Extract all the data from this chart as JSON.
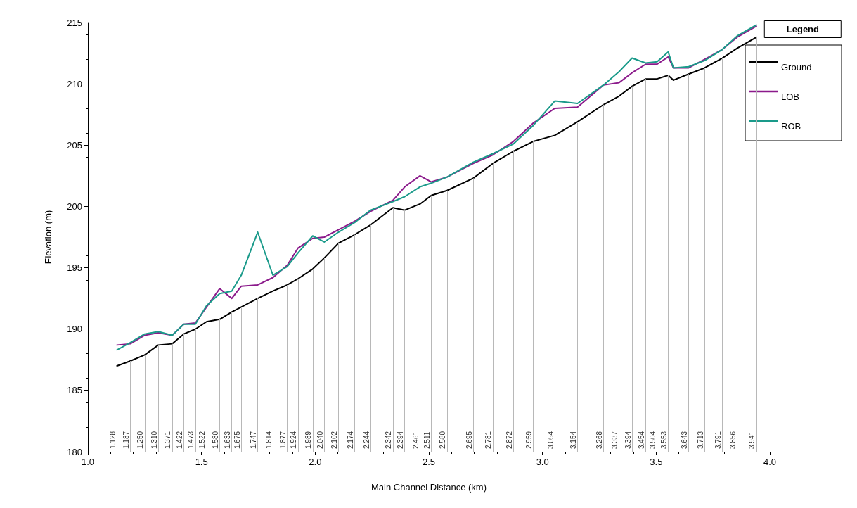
{
  "chart_data": {
    "type": "line",
    "xlabel": "Main Channel Distance (km)",
    "ylabel": "Elevation (m)",
    "legend_title": "Legend",
    "legend": "top right",
    "grid": false,
    "line_style": "solid",
    "marker": "none",
    "x": [
      1.128,
      1.187,
      1.25,
      1.31,
      1.371,
      1.422,
      1.473,
      1.522,
      1.58,
      1.633,
      1.675,
      1.747,
      1.814,
      1.877,
      1.924,
      1.989,
      2.04,
      2.102,
      2.174,
      2.244,
      2.342,
      2.394,
      2.461,
      2.511,
      2.58,
      2.695,
      2.781,
      2.872,
      2.959,
      3.054,
      3.154,
      3.268,
      3.337,
      3.394,
      3.454,
      3.504,
      3.553,
      3.576,
      3.643,
      3.713,
      3.791,
      3.856,
      3.941
    ],
    "series": [
      {
        "name": "Ground",
        "color": "#000000",
        "values": [
          187.0,
          187.4,
          187.9,
          188.7,
          188.8,
          189.6,
          190.0,
          190.6,
          190.8,
          191.4,
          191.8,
          192.5,
          193.1,
          193.6,
          194.1,
          194.9,
          195.8,
          197.0,
          197.7,
          198.5,
          199.9,
          199.7,
          200.2,
          200.9,
          201.3,
          202.3,
          203.5,
          204.5,
          205.3,
          205.8,
          206.9,
          208.3,
          209.0,
          209.8,
          210.4,
          210.4,
          210.7,
          210.3,
          210.8,
          211.3,
          212.1,
          212.9,
          213.8
        ]
      },
      {
        "name": "LOB",
        "color": "#8b1a8b",
        "values": [
          188.7,
          188.8,
          189.5,
          189.7,
          189.5,
          190.4,
          190.5,
          191.8,
          193.3,
          192.5,
          193.5,
          193.6,
          194.2,
          195.2,
          196.6,
          197.4,
          197.5,
          198.1,
          198.8,
          199.6,
          200.5,
          201.6,
          202.5,
          202.0,
          202.4,
          203.5,
          204.2,
          205.3,
          206.8,
          208.0,
          208.1,
          209.9,
          210.1,
          210.9,
          211.6,
          211.6,
          212.2,
          211.3,
          211.3,
          212.0,
          212.8,
          213.8,
          214.7
        ]
      },
      {
        "name": "ROB",
        "color": "#1a9a8a",
        "values": [
          188.3,
          188.9,
          189.6,
          189.8,
          189.5,
          190.4,
          190.4,
          191.9,
          192.9,
          193.1,
          194.4,
          197.9,
          194.4,
          195.1,
          196.2,
          197.6,
          197.1,
          197.9,
          198.7,
          199.7,
          200.4,
          200.8,
          201.6,
          201.9,
          202.4,
          203.6,
          204.3,
          205.1,
          206.6,
          208.6,
          208.4,
          209.9,
          211.0,
          212.1,
          211.7,
          211.8,
          212.6,
          211.3,
          211.4,
          211.9,
          212.8,
          213.9,
          214.8
        ]
      }
    ],
    "xlim": [
      1.0,
      4.0
    ],
    "xticks": [
      {
        "value": 1.0,
        "label": "1.0"
      },
      {
        "value": 1.5,
        "label": "1.5"
      },
      {
        "value": 2.0,
        "label": "2.0"
      },
      {
        "value": 2.5,
        "label": "2.5"
      },
      {
        "value": 3.0,
        "label": "3.0"
      },
      {
        "value": 3.5,
        "label": "3.5"
      },
      {
        "value": 4.0,
        "label": "4.0"
      }
    ],
    "ylim": [
      180,
      215
    ],
    "yticks": [
      180,
      185,
      190,
      195,
      200,
      205,
      210,
      215
    ],
    "ref_lines": [
      {
        "axis": "x",
        "value": 1.128,
        "label": "1.128"
      },
      {
        "axis": "x",
        "value": 1.187,
        "label": "1.187"
      },
      {
        "axis": "x",
        "value": 1.25,
        "label": "1.250"
      },
      {
        "axis": "x",
        "value": 1.31,
        "label": "1.310"
      },
      {
        "axis": "x",
        "value": 1.371,
        "label": "1.371"
      },
      {
        "axis": "x",
        "value": 1.422,
        "label": "1.422"
      },
      {
        "axis": "x",
        "value": 1.473,
        "label": "1.473"
      },
      {
        "axis": "x",
        "value": 1.522,
        "label": "1.522"
      },
      {
        "axis": "x",
        "value": 1.58,
        "label": "1.580"
      },
      {
        "axis": "x",
        "value": 1.633,
        "label": "1.633"
      },
      {
        "axis": "x",
        "value": 1.675,
        "label": "1.675"
      },
      {
        "axis": "x",
        "value": 1.747,
        "label": "1.747"
      },
      {
        "axis": "x",
        "value": 1.814,
        "label": "1.814"
      },
      {
        "axis": "x",
        "value": 1.877,
        "label": "1.877"
      },
      {
        "axis": "x",
        "value": 1.924,
        "label": "1.924"
      },
      {
        "axis": "x",
        "value": 1.989,
        "label": "1.989"
      },
      {
        "axis": "x",
        "value": 2.04,
        "label": "2.040"
      },
      {
        "axis": "x",
        "value": 2.102,
        "label": "2.102"
      },
      {
        "axis": "x",
        "value": 2.174,
        "label": "2.174"
      },
      {
        "axis": "x",
        "value": 2.244,
        "label": "2.244"
      },
      {
        "axis": "x",
        "value": 2.342,
        "label": "2.342"
      },
      {
        "axis": "x",
        "value": 2.394,
        "label": "2.394"
      },
      {
        "axis": "x",
        "value": 2.461,
        "label": "2.461"
      },
      {
        "axis": "x",
        "value": 2.511,
        "label": "2.511"
      },
      {
        "axis": "x",
        "value": 2.58,
        "label": "2.580"
      },
      {
        "axis": "x",
        "value": 2.695,
        "label": "2.695"
      },
      {
        "axis": "x",
        "value": 2.781,
        "label": "2.781"
      },
      {
        "axis": "x",
        "value": 2.872,
        "label": "2.872"
      },
      {
        "axis": "x",
        "value": 2.959,
        "label": "2.959"
      },
      {
        "axis": "x",
        "value": 3.054,
        "label": "3.054"
      },
      {
        "axis": "x",
        "value": 3.154,
        "label": "3.154"
      },
      {
        "axis": "x",
        "value": 3.268,
        "label": "3.268"
      },
      {
        "axis": "x",
        "value": 3.337,
        "label": "3.337"
      },
      {
        "axis": "x",
        "value": 3.394,
        "label": "3.394"
      },
      {
        "axis": "x",
        "value": 3.454,
        "label": "3.454"
      },
      {
        "axis": "x",
        "value": 3.504,
        "label": "3.504"
      },
      {
        "axis": "x",
        "value": 3.553,
        "label": "3.553"
      },
      {
        "axis": "x",
        "value": 3.643,
        "label": "3.643"
      },
      {
        "axis": "x",
        "value": 3.713,
        "label": "3.713"
      },
      {
        "axis": "x",
        "value": 3.791,
        "label": "3.791"
      },
      {
        "axis": "x",
        "value": 3.856,
        "label": "3.856"
      },
      {
        "axis": "x",
        "value": 3.941,
        "label": "3.941"
      }
    ]
  }
}
